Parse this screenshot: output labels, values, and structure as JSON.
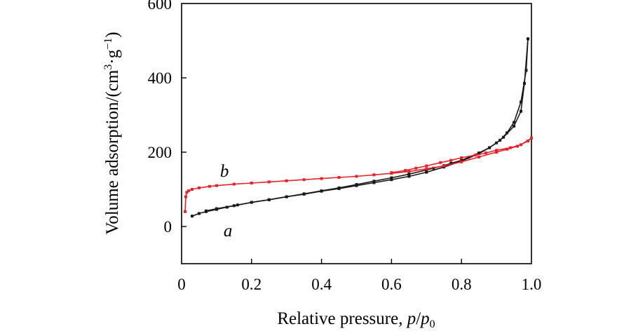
{
  "chart_data": {
    "type": "line",
    "title": "",
    "xlabel_prefix": "Relative pressure, ",
    "xlabel_p": "p",
    "xlabel_slash": "/",
    "xlabel_p0": "p",
    "xlabel_sub0": "0",
    "ylabel_main": "Volume adsorption/(cm",
    "ylabel_sup3": "3",
    "ylabel_mid": "·g",
    "ylabel_supneg1": "−1",
    "ylabel_close": ")",
    "xlim": [
      0,
      1.0
    ],
    "ylim": [
      -100,
      600
    ],
    "x_ticks": [
      0,
      0.2,
      0.4,
      0.6,
      0.8,
      1.0
    ],
    "x_tick_labels": [
      "0",
      "0.2",
      "0.4",
      "0.6",
      "0.8",
      "1.0"
    ],
    "y_ticks": [
      0,
      200,
      400,
      600
    ],
    "y_tick_labels": [
      "0",
      "200",
      "400",
      "600"
    ],
    "grid": false,
    "series": [
      {
        "name": "a",
        "color": "#1a1a1a",
        "label": "a",
        "label_at": [
          0.12,
          0
        ],
        "x": [
          0.03,
          0.05,
          0.07,
          0.1,
          0.13,
          0.16,
          0.2,
          0.25,
          0.3,
          0.35,
          0.4,
          0.45,
          0.5,
          0.55,
          0.6,
          0.65,
          0.7,
          0.75,
          0.8,
          0.85,
          0.88,
          0.91,
          0.93,
          0.95,
          0.97,
          0.985,
          0.99
        ],
        "values": [
          28,
          35,
          40,
          46,
          52,
          58,
          65,
          72,
          80,
          87,
          95,
          102,
          110,
          118,
          126,
          135,
          146,
          160,
          176,
          196,
          212,
          232,
          252,
          280,
          335,
          420,
          505
        ]
      },
      {
        "name": "a-desorption",
        "color": "#1a1a1a",
        "label": "",
        "x": [
          0.99,
          0.98,
          0.97,
          0.95,
          0.92,
          0.9,
          0.88,
          0.85,
          0.82,
          0.8,
          0.77,
          0.75,
          0.72,
          0.7,
          0.65,
          0.6,
          0.55,
          0.5,
          0.45,
          0.4,
          0.35,
          0.3,
          0.25,
          0.2,
          0.15,
          0.1,
          0.07
        ],
        "values": [
          505,
          385,
          310,
          270,
          240,
          225,
          212,
          198,
          186,
          178,
          170,
          164,
          157,
          152,
          141,
          131,
          122,
          113,
          104,
          96,
          88,
          80,
          72,
          65,
          56,
          48,
          42
        ]
      },
      {
        "name": "b",
        "color": "#e8222a",
        "label": "b",
        "label_at": [
          0.11,
          160
        ],
        "x": [
          0.01,
          0.012,
          0.015,
          0.02,
          0.03,
          0.05,
          0.08,
          0.1,
          0.15,
          0.2,
          0.25,
          0.3,
          0.35,
          0.4,
          0.45,
          0.5,
          0.55,
          0.6,
          0.65,
          0.7,
          0.75,
          0.8,
          0.85,
          0.9,
          0.93,
          0.96,
          0.99,
          1.0
        ],
        "values": [
          40,
          80,
          92,
          96,
          100,
          104,
          108,
          110,
          114,
          117,
          120,
          123,
          126,
          129,
          132,
          135,
          139,
          143,
          148,
          155,
          163,
          174,
          187,
          200,
          208,
          216,
          230,
          238
        ]
      },
      {
        "name": "b-desorption",
        "color": "#e8222a",
        "label": "",
        "x": [
          1.0,
          0.97,
          0.94,
          0.9,
          0.87,
          0.84,
          0.8,
          0.77,
          0.74,
          0.7,
          0.67,
          0.64,
          0.6
        ],
        "values": [
          238,
          220,
          212,
          205,
          198,
          192,
          185,
          178,
          172,
          163,
          157,
          151,
          145
        ]
      }
    ]
  }
}
